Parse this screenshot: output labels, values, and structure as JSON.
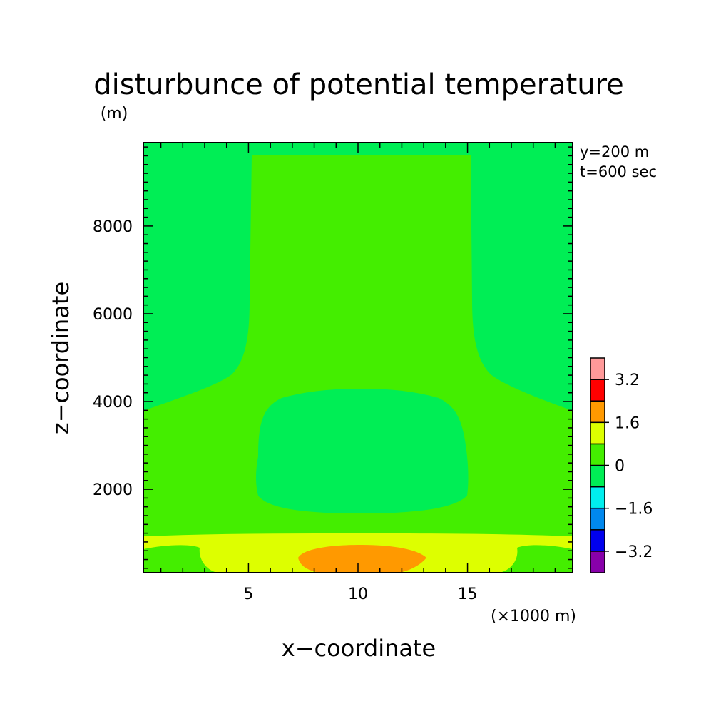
{
  "chart_data": {
    "type": "heatmap",
    "title": "disturbunce of potential temperature",
    "ylabel_unit": "(m)",
    "xlabel": "x−coordinate",
    "ylabel": "z−coordinate",
    "xunit": "(×1000 m)",
    "annotations": [
      "y=200 m",
      "t=600 sec"
    ],
    "xlim": [
      0.2,
      19.8
    ],
    "ylim": [
      100,
      9900
    ],
    "x_ticks": [
      5,
      10,
      15
    ],
    "x_tick_labels": [
      "5",
      "10",
      "15"
    ],
    "y_ticks": [
      2000,
      4000,
      6000,
      8000
    ],
    "y_tick_labels": [
      "2000",
      "4000",
      "6000",
      "8000"
    ],
    "colorbar": {
      "tick_labels": [
        "3.2",
        "1.6",
        "0",
        "−1.6",
        "−3.2"
      ],
      "colors": [
        "#8800aa",
        "#0000ee",
        "#0088ee",
        "#00eeee",
        "#00ee55",
        "#44ee00",
        "#ddff00",
        "#ff9900",
        "#ff0000",
        "#ff9999"
      ]
    },
    "regions": [
      {
        "level": "-0.8 to 0",
        "color": "#00ee55",
        "description": "upper outer columns above ~3800-4800 m"
      },
      {
        "level": "0 to 0.8",
        "color": "#44ee00",
        "description": "central column x 5-15 and mid layer"
      },
      {
        "level": "-0.8 to 0",
        "color": "#00ee55",
        "description": "central bubble x 5.5-15, z 1400-4300 m"
      },
      {
        "level": "0.8 to 1.6",
        "color": "#ddff00",
        "description": "near-surface layer below ~900 m"
      },
      {
        "level": "1.6 to 2.4",
        "color": "#ff9900",
        "description": "warm core x 7-13, z < 650 m"
      }
    ]
  }
}
